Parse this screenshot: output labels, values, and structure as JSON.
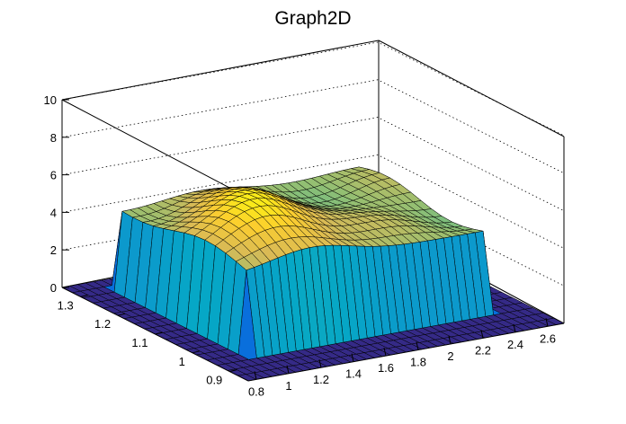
{
  "chart_data": {
    "type": "surface",
    "title": "Graph2D",
    "xlabel": "",
    "ylabel": "",
    "zlabel": "",
    "x_range": [
      0.75,
      2.7
    ],
    "y_range": [
      0.85,
      1.35
    ],
    "z_range": [
      0,
      10
    ],
    "x_ticks": [
      "0.8",
      "1",
      "1.2",
      "1.4",
      "1.6",
      "1.8",
      "2",
      "2.2",
      "2.4",
      "2.6"
    ],
    "y_ticks": [
      "0.9",
      "1",
      "1.1",
      "1.2",
      "1.3"
    ],
    "z_ticks": [
      "0",
      "2",
      "4",
      "6",
      "8",
      "10"
    ],
    "grid": true,
    "palette": [
      "#352a87",
      "#0363e1",
      "#1485d4",
      "#06a7c6",
      "#38b99e",
      "#92bf73",
      "#d9ba56",
      "#fcce2e",
      "#f9fb0e"
    ],
    "surface": {
      "description_of_shape": "plateau",
      "x_extent": [
        0.95,
        2.5
      ],
      "y_extent": [
        0.95,
        1.3
      ],
      "plateau_height": 4.2,
      "peak_height": 6.3,
      "peak_position": [
        1.4,
        1.1
      ]
    }
  }
}
